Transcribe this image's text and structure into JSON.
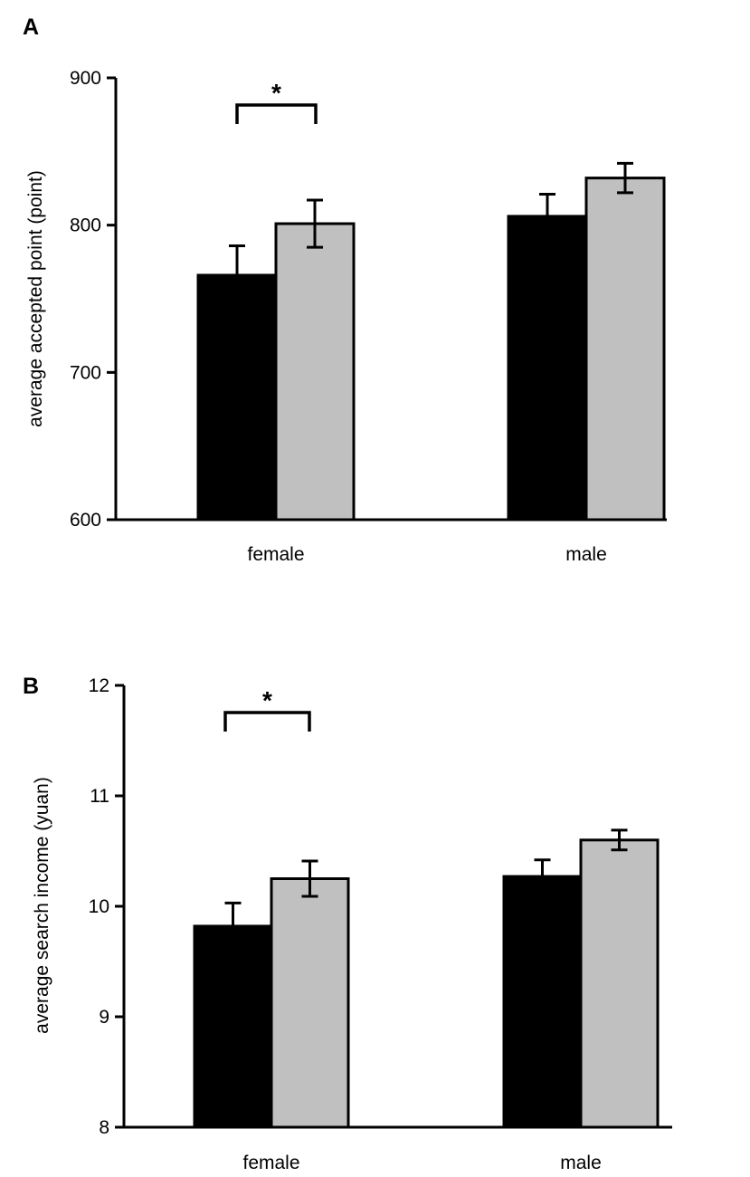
{
  "colors": {
    "series_dark": "#000000",
    "series_light": "#c0c0c0",
    "axis": "#000000",
    "background": "#ffffff"
  },
  "chart_data": [
    {
      "panel": "A",
      "type": "bar",
      "title": "",
      "xlabel": "",
      "ylabel": "average accepted point (point)",
      "ylim": [
        600,
        900
      ],
      "yticks": [
        600,
        700,
        800,
        900
      ],
      "categories": [
        "female",
        "male"
      ],
      "series": [
        {
          "name": "",
          "color": "#000000",
          "values": [
            766,
            806
          ],
          "errors": [
            20,
            15
          ]
        },
        {
          "name": "",
          "color": "#c0c0c0",
          "values": [
            801,
            832
          ],
          "errors": [
            16,
            10
          ]
        }
      ],
      "annotations": [
        {
          "text": "*",
          "category": "female",
          "type": "significance-bracket"
        }
      ]
    },
    {
      "panel": "B",
      "type": "bar",
      "title": "",
      "xlabel": "",
      "ylabel": "average search income (yuan)",
      "ylim": [
        8,
        12
      ],
      "yticks": [
        8,
        9,
        10,
        11,
        12
      ],
      "categories": [
        "female",
        "male"
      ],
      "series": [
        {
          "name": "",
          "color": "#000000",
          "values": [
            9.82,
            10.27
          ],
          "errors": [
            0.21,
            0.15
          ]
        },
        {
          "name": "",
          "color": "#c0c0c0",
          "values": [
            10.25,
            10.6
          ],
          "errors": [
            0.16,
            0.09
          ]
        }
      ],
      "annotations": [
        {
          "text": "*",
          "category": "female",
          "type": "significance-bracket"
        }
      ]
    }
  ]
}
